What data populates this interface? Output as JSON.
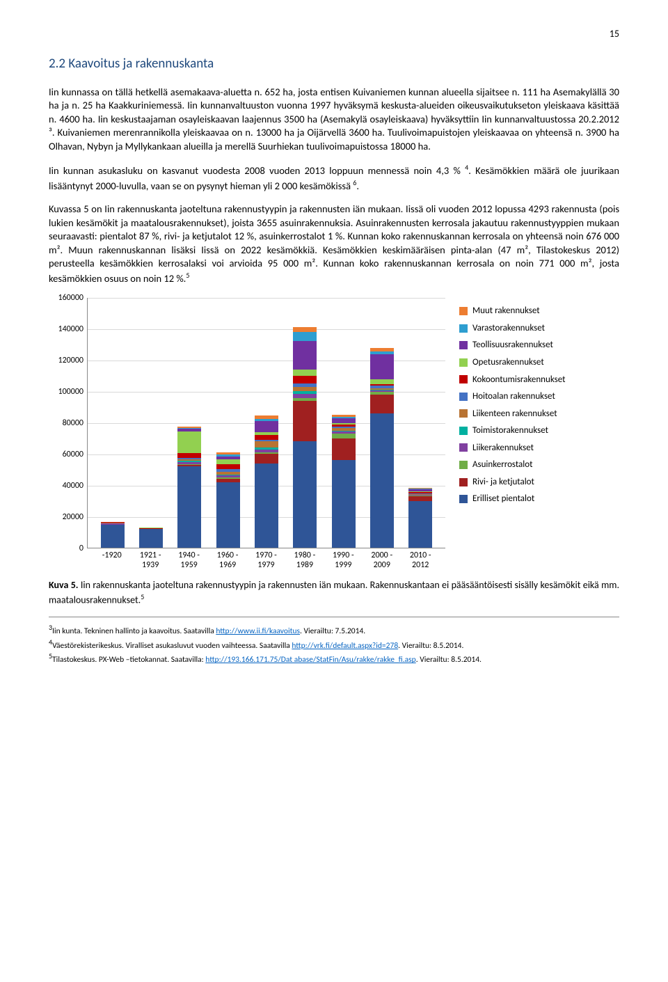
{
  "page_number": "15",
  "heading": "2.2 Kaavoitus ja rakennuskanta",
  "para1": "Iin kunnassa on tällä hetkellä asemakaava-aluetta n. 652 ha, josta entisen Kuivaniemen kunnan alueella sijaitsee n. 111 ha Asemakylällä 30 ha ja n. 25 ha Kaakkuriniemessä. Iin kunnanvaltuuston vuonna 1997 hyväksymä keskusta-alueiden oikeusvaikutukseton yleiskaava käsittää n. 4600 ha. Iin keskustaajaman osayleiskaavan laajennus 3500 ha (Asemakylä osayleiskaava) hyväksyttiin Iin kunnanvaltuustossa 20.2.2012 ³. Kuivaniemen merenrannikolla yleiskaavaa on n. 13000 ha ja Oijärvellä 3600 ha. Tuulivoimapuistojen yleiskaavaa on yhteensä n. 3900 ha Olhavan, Nybyn ja Myllykankaan alueilla ja merellä Suurhiekan tuulivoimapuistossa 18000 ha.",
  "para2_a": "Iin kunnan asukasluku on kasvanut vuodesta 2008 vuoden 2013 loppuun mennessä noin 4,3 % ",
  "para2_b": ". Kesämökkien määrä ole juurikaan lisääntynyt 2000-luvulla, vaan se on pysynyt hieman yli 2 000 kesämökissä ",
  "para2_c": ".",
  "para3_a": "Kuvassa 5 on Iin rakennuskanta jaoteltuna rakennustyypin ja rakennusten iän mukaan. Iissä oli vuoden 2012 lopussa 4293 rakennusta (pois lukien kesämökit ja maatalousrakennukset), joista 3655 asuinrakennuksia. Asuinrakennusten kerrosala jakautuu rakennustyyppien mukaan seuraavasti: pientalot 87 %, rivi- ja ketjutalot 12 %, asuinkerrostalot 1 %. Kunnan koko rakennuskannan kerrosala on yhteensä noin 676 000 m². Muun rakennuskannan lisäksi Iissä on 2022 kesämökkiä. Kesämökkien keskimääräisen pinta-alan (47 m², Tilastokeskus 2012) perusteella kesämökkien kerrosalaksi voi arvioida 95 000 m². Kunnan koko rakennuskannan kerrosala on noin 771 000 m², josta kesämökkien osuus on noin 12 %.",
  "chart": {
    "ymax": 160000,
    "ytick_step": 20000,
    "yticks": [
      "0",
      "20000",
      "40000",
      "60000",
      "80000",
      "100000",
      "120000",
      "140000",
      "160000"
    ],
    "categories": [
      "-1920",
      "1921 - 1939",
      "1940 - 1959",
      "1960 - 1969",
      "1970 - 1979",
      "1980 - 1989",
      "1990 - 1999",
      "2000 - 2009",
      "2010 - 2012"
    ],
    "legend": [
      {
        "label": "Muut rakennukset",
        "color": "#ed7d31"
      },
      {
        "label": "Varastorakennukset",
        "color": "#2e9ed0"
      },
      {
        "label": "Teollisuusrakennukset",
        "color": "#7030a0"
      },
      {
        "label": "Opetusrakennukset",
        "color": "#92d050"
      },
      {
        "label": "Kokoontumisrakennukset",
        "color": "#c00000"
      },
      {
        "label": "Hoitoalan rakennukset",
        "color": "#4472c4"
      },
      {
        "label": "Liikenteen rakennukset",
        "color": "#b87333"
      },
      {
        "label": "Toimistorakennukset",
        "color": "#00b0a0"
      },
      {
        "label": "Liikerakennukset",
        "color": "#8040a0"
      },
      {
        "label": "Asuinkerrostalot",
        "color": "#70ad47"
      },
      {
        "label": "Rivi- ja ketjutalot",
        "color": "#a02020"
      },
      {
        "label": "Erilliset pientalot",
        "color": "#2f5597"
      }
    ],
    "series_order": [
      "Erilliset pientalot",
      "Rivi- ja ketjutalot",
      "Asuinkerrostalot",
      "Liikerakennukset",
      "Toimistorakennukset",
      "Liikenteen rakennukset",
      "Hoitoalan rakennukset",
      "Kokoontumisrakennukset",
      "Opetusrakennukset",
      "Teollisuusrakennukset",
      "Varastorakennukset",
      "Muut rakennukset"
    ],
    "colors": {
      "Erilliset pientalot": "#2f5597",
      "Rivi- ja ketjutalot": "#a02020",
      "Asuinkerrostalot": "#70ad47",
      "Liikerakennukset": "#8040a0",
      "Toimistorakennukset": "#00b0a0",
      "Liikenteen rakennukset": "#b87333",
      "Hoitoalan rakennukset": "#4472c4",
      "Kokoontumisrakennukset": "#c00000",
      "Opetusrakennukset": "#92d050",
      "Teollisuusrakennukset": "#7030a0",
      "Varastorakennukset": "#2e9ed0",
      "Muut rakennukset": "#ed7d31"
    },
    "stacks": [
      {
        "Erilliset pientalot": 15000,
        "Rivi- ja ketjutalot": 0,
        "Asuinkerrostalot": 0,
        "Liikerakennukset": 500,
        "Toimistorakennukset": 0,
        "Liikenteen rakennukset": 500,
        "Hoitoalan rakennukset": 0,
        "Kokoontumisrakennukset": 500,
        "Opetusrakennukset": 0,
        "Teollisuusrakennukset": 0,
        "Varastorakennukset": 0,
        "Muut rakennukset": 0
      },
      {
        "Erilliset pientalot": 12000,
        "Rivi- ja ketjutalot": 0,
        "Asuinkerrostalot": 0,
        "Liikerakennukset": 300,
        "Toimistorakennukset": 0,
        "Liikenteen rakennukset": 0,
        "Hoitoalan rakennukset": 0,
        "Kokoontumisrakennukset": 300,
        "Opetusrakennukset": 500,
        "Teollisuusrakennukset": 0,
        "Varastorakennukset": 0,
        "Muut rakennukset": 0
      },
      {
        "Erilliset pientalot": 52000,
        "Rivi- ja ketjutalot": 1000,
        "Asuinkerrostalot": 500,
        "Liikerakennukset": 1500,
        "Toimistorakennukset": 500,
        "Liikenteen rakennukset": 1000,
        "Hoitoalan rakennukset": 1000,
        "Kokoontumisrakennukset": 3000,
        "Opetusrakennukset": 14000,
        "Teollisuusrakennukset": 1500,
        "Varastorakennukset": 500,
        "Muut rakennukset": 1000
      },
      {
        "Erilliset pientalot": 42000,
        "Rivi- ja ketjutalot": 2000,
        "Asuinkerrostalot": 1000,
        "Liikerakennukset": 1500,
        "Toimistorakennukset": 500,
        "Liikenteen rakennukset": 1500,
        "Hoitoalan rakennukset": 2000,
        "Kokoontumisrakennukset": 3000,
        "Opetusrakennukset": 3000,
        "Teollisuusrakennukset": 2000,
        "Varastorakennukset": 1000,
        "Muut rakennukset": 1500
      },
      {
        "Erilliset pientalot": 54000,
        "Rivi- ja ketjutalot": 6000,
        "Asuinkerrostalot": 1000,
        "Liikerakennukset": 2000,
        "Toimistorakennukset": 1000,
        "Liikenteen rakennukset": 4000,
        "Hoitoalan rakennukset": 1000,
        "Kokoontumisrakennukset": 3000,
        "Opetusrakennukset": 2000,
        "Teollisuusrakennukset": 7000,
        "Varastorakennukset": 1500,
        "Muut rakennukset": 2000
      },
      {
        "Erilliset pientalot": 68000,
        "Rivi- ja ketjutalot": 26000,
        "Asuinkerrostalot": 1500,
        "Liikerakennukset": 3000,
        "Toimistorakennukset": 1500,
        "Liikenteen rakennukset": 3000,
        "Hoitoalan rakennukset": 2000,
        "Kokoontumisrakennukset": 5000,
        "Opetusrakennukset": 4000,
        "Teollisuusrakennukset": 18000,
        "Varastorakennukset": 6000,
        "Muut rakennukset": 3000
      },
      {
        "Erilliset pientalot": 56000,
        "Rivi- ja ketjutalot": 14000,
        "Asuinkerrostalot": 3000,
        "Liikerakennukset": 1500,
        "Toimistorakennukset": 500,
        "Liikenteen rakennukset": 1500,
        "Hoitoalan rakennukset": 1000,
        "Kokoontumisrakennukset": 1500,
        "Opetusrakennukset": 500,
        "Teollisuusrakennukset": 3500,
        "Varastorakennukset": 500,
        "Muut rakennukset": 1500
      },
      {
        "Erilliset pientalot": 86000,
        "Rivi- ja ketjutalot": 12000,
        "Asuinkerrostalot": 1500,
        "Liikerakennukset": 1000,
        "Toimistorakennukset": 500,
        "Liikenteen rakennukset": 1000,
        "Hoitoalan rakennukset": 1500,
        "Kokoontumisrakennukset": 1000,
        "Opetusrakennukset": 3000,
        "Teollisuusrakennukset": 16000,
        "Varastorakennukset": 2000,
        "Muut rakennukset": 2000
      },
      {
        "Erilliset pientalot": 30000,
        "Rivi- ja ketjutalot": 3000,
        "Asuinkerrostalot": 500,
        "Liikerakennukset": 500,
        "Toimistorakennukset": 0,
        "Liikenteen rakennukset": 500,
        "Hoitoalan rakennukset": 500,
        "Kokoontumisrakennukset": 500,
        "Opetusrakennukset": 500,
        "Teollisuusrakennukset": 1500,
        "Varastorakennukset": 500,
        "Muut rakennukset": 500
      }
    ]
  },
  "caption_a": "Kuva 5.",
  "caption_b": " Iin rakennuskanta jaoteltuna rakennustyypin ja rakennusten iän mukaan. Rakennuskantaan ei pääsääntöisesti sisälly kesämökit eikä mm. maatalousrakennukset.",
  "footnotes": [
    {
      "n": "3",
      "text": "Iin kunta. Tekninen hallinto ja kaavoitus. Saatavilla ",
      "link": "http://www.ii.fi/kaavoitus",
      "after": ". Vierailtu: 7.5.2014."
    },
    {
      "n": "4",
      "text": "Väestörekisterikeskus. Viralliset asukasluvut vuoden vaihteessa. Saatavilla ",
      "link": "http://vrk.fi/default.aspx?id=278",
      "after": ". Vierailtu: 8.5.2014."
    },
    {
      "n": "5",
      "text": "Tilastokeskus. PX-Web –tietokannat. Saatavilla: ",
      "link": "http://193.166.171.75/Dat abase/StatFin/Asu/rakke/rakke_fi.asp",
      "after": ". Vierailtu: 8.5.2014."
    }
  ]
}
